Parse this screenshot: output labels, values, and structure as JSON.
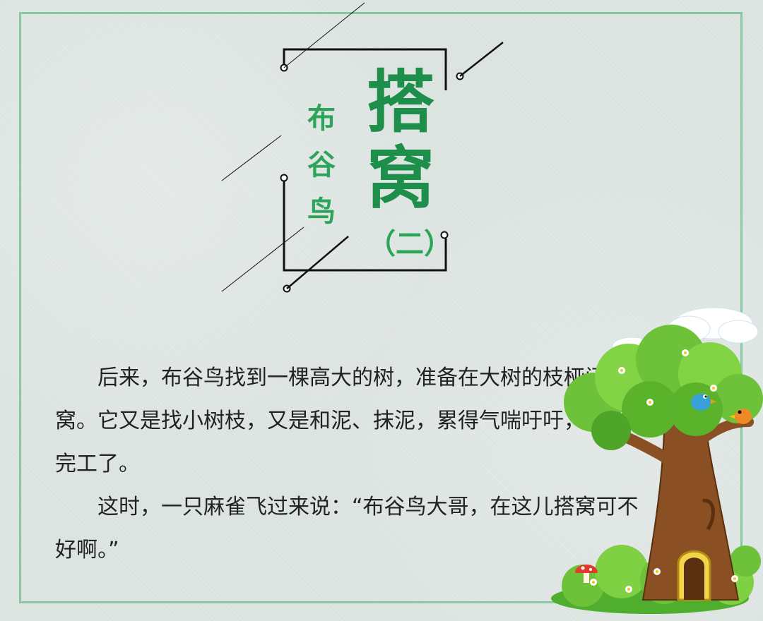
{
  "title": {
    "main_char_1": "搭",
    "main_char_2": "窝",
    "side_char_1": "布",
    "side_char_2": "谷",
    "side_char_3": "鸟",
    "part": "（二）"
  },
  "story": {
    "paragraph_1": "后来，布谷鸟找到一棵高大的树，准备在大树的枝桠间搭窝。它又是找小树枝，又是和泥、抹泥，累得气喘吁吁，眼看要完工了。",
    "paragraph_2": "这时，一只麻雀飞过来说：“布谷鸟大哥，在这儿搭窝可不好啊。”"
  },
  "colors": {
    "frame": "#86c9a2",
    "title_green": "#1e8f4a",
    "sub_green": "#2ca55a",
    "text": "#222222"
  },
  "illustration": {
    "tree_icon": "cartoon-tree-house-icon",
    "bird_icons": [
      "blue-bird-icon",
      "orange-bird-icon"
    ],
    "mushroom_icon": "red-mushroom-icon"
  }
}
